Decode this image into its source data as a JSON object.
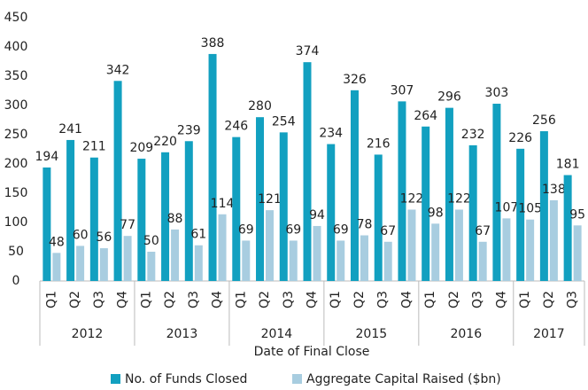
{
  "chart_data": {
    "type": "bar",
    "x_label": "Date of Final Close",
    "categories": [
      "Q1",
      "Q2",
      "Q3",
      "Q4",
      "Q1",
      "Q2",
      "Q3",
      "Q4",
      "Q1",
      "Q2",
      "Q3",
      "Q4",
      "Q1",
      "Q2",
      "Q3",
      "Q4",
      "Q1",
      "Q2",
      "Q3",
      "Q4",
      "Q1",
      "Q2",
      "Q3"
    ],
    "year_groups": [
      {
        "label": "2012",
        "span": 4
      },
      {
        "label": "2013",
        "span": 4
      },
      {
        "label": "2014",
        "span": 4
      },
      {
        "label": "2015",
        "span": 4
      },
      {
        "label": "2016",
        "span": 4
      },
      {
        "label": "2017",
        "span": 3
      }
    ],
    "series": [
      {
        "name": "No. of Funds Closed",
        "color": "#12a0c0",
        "values": [
          194,
          241,
          211,
          342,
          209,
          220,
          239,
          388,
          246,
          280,
          254,
          374,
          234,
          326,
          216,
          307,
          264,
          296,
          232,
          303,
          226,
          256,
          181
        ]
      },
      {
        "name": "Aggregate Capital Raised ($bn)",
        "color": "#a8cde0",
        "values": [
          48,
          60,
          56,
          77,
          50,
          88,
          61,
          114,
          69,
          121,
          69,
          94,
          69,
          78,
          67,
          122,
          98,
          122,
          67,
          107,
          105,
          138,
          95
        ]
      }
    ],
    "ylim": [
      0,
      450
    ],
    "yticks": [
      0,
      50,
      100,
      150,
      200,
      250,
      300,
      350,
      400,
      450
    ],
    "grid": false,
    "legend": "bottom"
  }
}
